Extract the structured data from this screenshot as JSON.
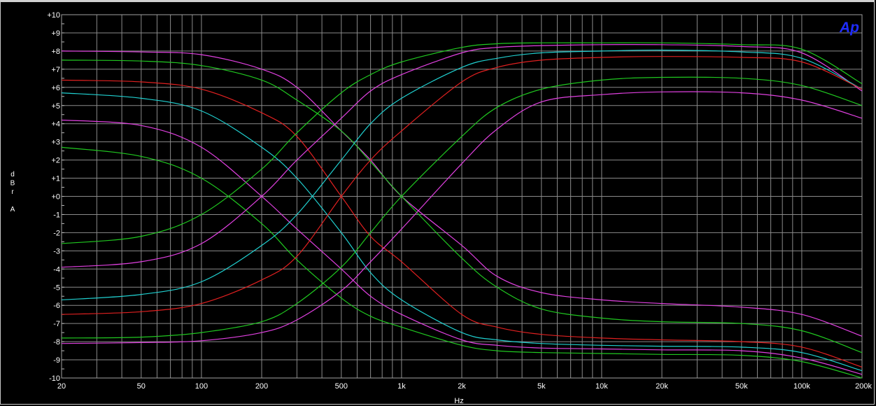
{
  "logo_text": "Ap",
  "chart_data": {
    "type": "line",
    "xscale": "log",
    "xlim": [
      20,
      200000
    ],
    "ylim": [
      -10,
      10
    ],
    "xlabel": "Hz",
    "ylabel_lines": [
      "d",
      "B",
      "r",
      "",
      "A"
    ],
    "grid": true,
    "background": "#000000",
    "grid_color": "#8a8a8a",
    "x_ticks": [
      {
        "v": 20,
        "label": "20"
      },
      {
        "v": 50,
        "label": "50"
      },
      {
        "v": 100,
        "label": "100"
      },
      {
        "v": 200,
        "label": "200"
      },
      {
        "v": 500,
        "label": "500"
      },
      {
        "v": 1000,
        "label": "1k"
      },
      {
        "v": 2000,
        "label": "2k"
      },
      {
        "v": 5000,
        "label": "5k"
      },
      {
        "v": 10000,
        "label": "10k"
      },
      {
        "v": 20000,
        "label": "20k"
      },
      {
        "v": 50000,
        "label": "50k"
      },
      {
        "v": 100000,
        "label": "100k"
      },
      {
        "v": 200000,
        "label": "200k"
      }
    ],
    "y_ticks": [
      {
        "v": 10,
        "label": "+10"
      },
      {
        "v": 9,
        "label": "+9"
      },
      {
        "v": 8,
        "label": "+8"
      },
      {
        "v": 7,
        "label": "+7"
      },
      {
        "v": 6,
        "label": "+6"
      },
      {
        "v": 5,
        "label": "+5"
      },
      {
        "v": 4,
        "label": "+4"
      },
      {
        "v": 3,
        "label": "+3"
      },
      {
        "v": 2,
        "label": "+2"
      },
      {
        "v": 1,
        "label": "+1"
      },
      {
        "v": 0,
        "label": "+0"
      },
      {
        "v": -1,
        "label": "-1"
      },
      {
        "v": -2,
        "label": "-2"
      },
      {
        "v": -3,
        "label": "-3"
      },
      {
        "v": -4,
        "label": "-4"
      },
      {
        "v": -5,
        "label": "-5"
      },
      {
        "v": -6,
        "label": "-6"
      },
      {
        "v": -7,
        "label": "-7"
      },
      {
        "v": -8,
        "label": "-8"
      },
      {
        "v": -9,
        "label": "-9"
      },
      {
        "v": -10,
        "label": "-10"
      }
    ],
    "series": [
      {
        "color": "#e040e0",
        "points": [
          [
            20,
            8.0
          ],
          [
            50,
            7.95
          ],
          [
            100,
            7.8
          ],
          [
            200,
            7.0
          ],
          [
            300,
            6.0
          ],
          [
            500,
            3.6
          ],
          [
            700,
            2.0
          ],
          [
            1000,
            0.0
          ],
          [
            2000,
            -2.7
          ],
          [
            3000,
            -4.4
          ],
          [
            5000,
            -5.3
          ],
          [
            10000,
            -5.7
          ],
          [
            20000,
            -5.9
          ],
          [
            50000,
            -6.1
          ],
          [
            100000,
            -6.5
          ],
          [
            200000,
            -7.7
          ]
        ]
      },
      {
        "color": "#20c820",
        "points": [
          [
            20,
            7.5
          ],
          [
            50,
            7.45
          ],
          [
            100,
            7.2
          ],
          [
            200,
            6.4
          ],
          [
            300,
            5.3
          ],
          [
            500,
            3.6
          ],
          [
            700,
            1.9
          ],
          [
            1000,
            0.0
          ],
          [
            2000,
            -3.4
          ],
          [
            3000,
            -5.0
          ],
          [
            5000,
            -6.2
          ],
          [
            10000,
            -6.7
          ],
          [
            20000,
            -6.9
          ],
          [
            50000,
            -7.0
          ],
          [
            100000,
            -7.4
          ],
          [
            200000,
            -8.6
          ]
        ]
      },
      {
        "color": "#e02020",
        "points": [
          [
            20,
            6.4
          ],
          [
            50,
            6.3
          ],
          [
            100,
            5.9
          ],
          [
            200,
            4.6
          ],
          [
            300,
            3.3
          ],
          [
            500,
            0.0
          ],
          [
            700,
            -2.2
          ],
          [
            1000,
            -3.6
          ],
          [
            2000,
            -6.5
          ],
          [
            3000,
            -7.2
          ],
          [
            5000,
            -7.6
          ],
          [
            10000,
            -7.8
          ],
          [
            20000,
            -7.9
          ],
          [
            50000,
            -8.0
          ],
          [
            100000,
            -8.3
          ],
          [
            200000,
            -9.4
          ]
        ]
      },
      {
        "color": "#20d0d0",
        "points": [
          [
            20,
            5.7
          ],
          [
            50,
            5.4
          ],
          [
            100,
            4.7
          ],
          [
            200,
            2.7
          ],
          [
            300,
            1.0
          ],
          [
            500,
            -2.0
          ],
          [
            700,
            -4.2
          ],
          [
            1000,
            -5.7
          ],
          [
            2000,
            -7.5
          ],
          [
            3000,
            -7.9
          ],
          [
            5000,
            -8.1
          ],
          [
            10000,
            -8.2
          ],
          [
            20000,
            -8.25
          ],
          [
            50000,
            -8.3
          ],
          [
            100000,
            -8.6
          ],
          [
            200000,
            -9.6
          ]
        ]
      },
      {
        "color": "#e040e0",
        "points": [
          [
            20,
            4.2
          ],
          [
            50,
            3.9
          ],
          [
            100,
            2.7
          ],
          [
            200,
            0.0
          ],
          [
            300,
            -1.8
          ],
          [
            500,
            -4.0
          ],
          [
            700,
            -5.5
          ],
          [
            1000,
            -6.5
          ],
          [
            2000,
            -7.9
          ],
          [
            3000,
            -8.2
          ],
          [
            5000,
            -8.35
          ],
          [
            10000,
            -8.4
          ],
          [
            20000,
            -8.45
          ],
          [
            50000,
            -8.5
          ],
          [
            100000,
            -8.9
          ],
          [
            200000,
            -9.8
          ]
        ]
      },
      {
        "color": "#20c820",
        "points": [
          [
            20,
            2.7
          ],
          [
            50,
            2.2
          ],
          [
            100,
            1.0
          ],
          [
            200,
            -1.5
          ],
          [
            300,
            -3.5
          ],
          [
            500,
            -5.6
          ],
          [
            700,
            -6.6
          ],
          [
            1000,
            -7.2
          ],
          [
            2000,
            -8.2
          ],
          [
            3000,
            -8.5
          ],
          [
            5000,
            -8.6
          ],
          [
            10000,
            -8.65
          ],
          [
            20000,
            -8.7
          ],
          [
            50000,
            -8.75
          ],
          [
            100000,
            -9.1
          ],
          [
            200000,
            -10.0
          ]
        ]
      },
      {
        "color": "#20c820",
        "points": [
          [
            20,
            -2.6
          ],
          [
            50,
            -2.2
          ],
          [
            100,
            -1.0
          ],
          [
            200,
            1.5
          ],
          [
            300,
            3.5
          ],
          [
            500,
            5.7
          ],
          [
            700,
            6.7
          ],
          [
            1000,
            7.4
          ],
          [
            2000,
            8.2
          ],
          [
            3000,
            8.4
          ],
          [
            5000,
            8.45
          ],
          [
            10000,
            8.45
          ],
          [
            20000,
            8.45
          ],
          [
            50000,
            8.35
          ],
          [
            100000,
            8.1
          ],
          [
            200000,
            6.2
          ]
        ]
      },
      {
        "color": "#e040e0",
        "points": [
          [
            20,
            -3.9
          ],
          [
            50,
            -3.6
          ],
          [
            100,
            -2.6
          ],
          [
            200,
            0.0
          ],
          [
            300,
            2.0
          ],
          [
            500,
            4.3
          ],
          [
            700,
            5.8
          ],
          [
            1000,
            6.7
          ],
          [
            2000,
            7.9
          ],
          [
            3000,
            8.2
          ],
          [
            5000,
            8.3
          ],
          [
            10000,
            8.35
          ],
          [
            20000,
            8.35
          ],
          [
            50000,
            8.25
          ],
          [
            100000,
            7.9
          ],
          [
            200000,
            5.8
          ]
        ]
      },
      {
        "color": "#20d0d0",
        "points": [
          [
            20,
            -5.7
          ],
          [
            50,
            -5.4
          ],
          [
            100,
            -4.7
          ],
          [
            200,
            -2.7
          ],
          [
            300,
            -1.0
          ],
          [
            500,
            2.0
          ],
          [
            700,
            4.0
          ],
          [
            1000,
            5.4
          ],
          [
            2000,
            7.1
          ],
          [
            3000,
            7.6
          ],
          [
            5000,
            7.9
          ],
          [
            10000,
            8.0
          ],
          [
            20000,
            8.05
          ],
          [
            50000,
            7.95
          ],
          [
            100000,
            7.6
          ],
          [
            200000,
            5.9
          ]
        ]
      },
      {
        "color": "#e02020",
        "points": [
          [
            20,
            -6.5
          ],
          [
            50,
            -6.35
          ],
          [
            100,
            -5.9
          ],
          [
            200,
            -4.6
          ],
          [
            300,
            -3.3
          ],
          [
            500,
            0.0
          ],
          [
            700,
            2.0
          ],
          [
            1000,
            3.6
          ],
          [
            2000,
            6.3
          ],
          [
            3000,
            7.1
          ],
          [
            5000,
            7.5
          ],
          [
            10000,
            7.65
          ],
          [
            20000,
            7.7
          ],
          [
            50000,
            7.65
          ],
          [
            100000,
            7.4
          ],
          [
            200000,
            5.9
          ]
        ]
      },
      {
        "color": "#20c820",
        "points": [
          [
            20,
            -7.8
          ],
          [
            50,
            -7.75
          ],
          [
            100,
            -7.5
          ],
          [
            200,
            -6.9
          ],
          [
            300,
            -5.9
          ],
          [
            500,
            -3.9
          ],
          [
            700,
            -2.0
          ],
          [
            1000,
            0.0
          ],
          [
            2000,
            3.3
          ],
          [
            3000,
            4.9
          ],
          [
            5000,
            5.9
          ],
          [
            10000,
            6.4
          ],
          [
            20000,
            6.55
          ],
          [
            50000,
            6.5
          ],
          [
            100000,
            6.1
          ],
          [
            200000,
            5.0
          ]
        ]
      },
      {
        "color": "#e040e0",
        "points": [
          [
            20,
            -8.1
          ],
          [
            50,
            -8.05
          ],
          [
            100,
            -7.95
          ],
          [
            200,
            -7.5
          ],
          [
            300,
            -6.8
          ],
          [
            500,
            -5.2
          ],
          [
            700,
            -3.6
          ],
          [
            1000,
            -1.8
          ],
          [
            2000,
            1.8
          ],
          [
            3000,
            3.7
          ],
          [
            5000,
            5.2
          ],
          [
            10000,
            5.6
          ],
          [
            20000,
            5.75
          ],
          [
            50000,
            5.7
          ],
          [
            100000,
            5.3
          ],
          [
            200000,
            4.3
          ]
        ]
      }
    ]
  }
}
